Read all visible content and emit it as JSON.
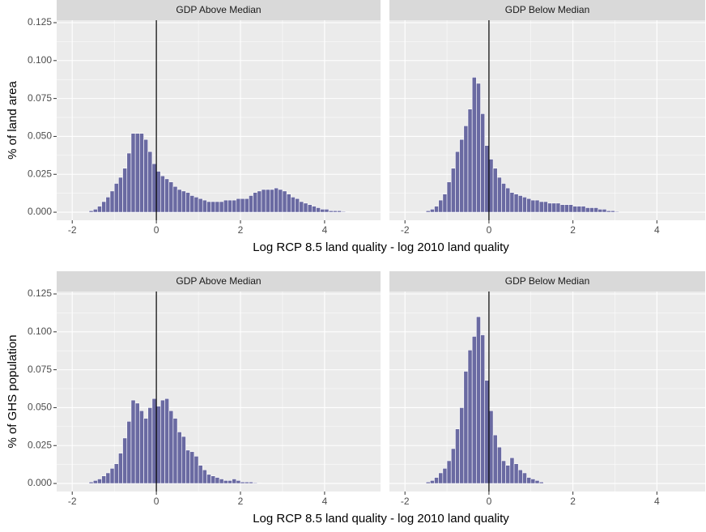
{
  "chart_data": [
    {
      "type": "histogram",
      "title": "GDP Above Median",
      "ylabel": "% of land area",
      "xlabel": "Log RCP 8.5 land quality - log 2010 land quality",
      "color": "#6a6aa2",
      "xlim": [
        -2.37,
        5.33
      ],
      "ylim": [
        -0.0053,
        0.1266
      ],
      "xticks": [
        -2,
        0,
        2,
        4
      ],
      "yticks": [
        {
          "value": 0,
          "label": "0.000"
        },
        {
          "value": 0.025,
          "label": "0.025"
        },
        {
          "value": 0.05,
          "label": "0.050"
        },
        {
          "value": 0.075,
          "label": "0.075"
        },
        {
          "value": 0.1,
          "label": "0.100"
        },
        {
          "value": 0.125,
          "label": "0.125"
        }
      ],
      "vline": 0,
      "bins": [
        -1.6,
        -1.5,
        -1.4,
        -1.3,
        -1.2,
        -1.1,
        -1.0,
        -0.9,
        -0.8,
        -0.7,
        -0.6,
        -0.5,
        -0.4,
        -0.3,
        -0.2,
        -0.1,
        0.0,
        0.1,
        0.2,
        0.3,
        0.4,
        0.5,
        0.6,
        0.7,
        0.8,
        0.9,
        1.0,
        1.1,
        1.2,
        1.3,
        1.4,
        1.5,
        1.6,
        1.7,
        1.8,
        1.9,
        2.0,
        2.1,
        2.2,
        2.3,
        2.4,
        2.5,
        2.6,
        2.7,
        2.8,
        2.9,
        3.0,
        3.1,
        3.2,
        3.3,
        3.4,
        3.5,
        3.6,
        3.7,
        3.8,
        3.9,
        4.0,
        4.1,
        4.2,
        4.3,
        4.4,
        4.5,
        4.6
      ],
      "counts": [
        0.001,
        0.002,
        0.004,
        0.007,
        0.01,
        0.014,
        0.019,
        0.023,
        0.029,
        0.039,
        0.052,
        0.052,
        0.052,
        0.048,
        0.04,
        0.032,
        0.027,
        0.024,
        0.022,
        0.02,
        0.017,
        0.015,
        0.014,
        0.013,
        0.011,
        0.01,
        0.009,
        0.008,
        0.007,
        0.007,
        0.007,
        0.007,
        0.008,
        0.008,
        0.008,
        0.009,
        0.009,
        0.009,
        0.011,
        0.013,
        0.014,
        0.015,
        0.015,
        0.015,
        0.016,
        0.015,
        0.014,
        0.012,
        0.01,
        0.009,
        0.007,
        0.006,
        0.005,
        0.004,
        0.003,
        0.002,
        0.002,
        0.001,
        0.001,
        0.001,
        0.0005,
        0.0003
      ]
    },
    {
      "type": "histogram",
      "title": "GDP Below Median",
      "color": "#6a6aa2",
      "xlim": [
        -2.37,
        5.15
      ],
      "ylim": [
        -0.0053,
        0.1266
      ],
      "xticks": [
        -2,
        0,
        2,
        4
      ],
      "yticks": [
        0,
        0.025,
        0.05,
        0.075,
        0.1,
        0.125
      ],
      "vline": 0,
      "bins": [
        -1.5,
        -1.4,
        -1.3,
        -1.2,
        -1.1,
        -1.0,
        -0.9,
        -0.8,
        -0.7,
        -0.6,
        -0.5,
        -0.4,
        -0.3,
        -0.2,
        -0.1,
        0.0,
        0.1,
        0.2,
        0.3,
        0.4,
        0.5,
        0.6,
        0.7,
        0.8,
        0.9,
        1.0,
        1.1,
        1.2,
        1.3,
        1.4,
        1.5,
        1.6,
        1.7,
        1.8,
        1.9,
        2.0,
        2.1,
        2.2,
        2.3,
        2.4,
        2.5,
        2.6,
        2.7,
        2.8,
        2.9,
        3.0,
        3.1
      ],
      "counts": [
        0.001,
        0.002,
        0.004,
        0.008,
        0.012,
        0.02,
        0.029,
        0.04,
        0.048,
        0.057,
        0.068,
        0.089,
        0.085,
        0.065,
        0.044,
        0.035,
        0.029,
        0.023,
        0.019,
        0.016,
        0.013,
        0.012,
        0.011,
        0.01,
        0.009,
        0.008,
        0.008,
        0.007,
        0.007,
        0.006,
        0.006,
        0.006,
        0.005,
        0.005,
        0.005,
        0.004,
        0.004,
        0.004,
        0.003,
        0.003,
        0.003,
        0.002,
        0.002,
        0.001,
        0.001,
        0.0005
      ]
    },
    {
      "type": "histogram",
      "title": "GDP Above Median",
      "ylabel": "% of GHS population",
      "xlabel": "Log RCP 8.5 land quality - log 2010 land quality",
      "color": "#6a6aa2",
      "xlim": [
        -2.37,
        5.33
      ],
      "ylim": [
        -0.0053,
        0.1266
      ],
      "xticks": [
        -2,
        0,
        2,
        4
      ],
      "yticks": [
        {
          "value": 0,
          "label": "0.000"
        },
        {
          "value": 0.025,
          "label": "0.025"
        },
        {
          "value": 0.05,
          "label": "0.050"
        },
        {
          "value": 0.075,
          "label": "0.075"
        },
        {
          "value": 0.1,
          "label": "0.100"
        },
        {
          "value": 0.125,
          "label": "0.125"
        }
      ],
      "vline": 0,
      "bins": [
        -1.6,
        -1.5,
        -1.4,
        -1.3,
        -1.2,
        -1.1,
        -1.0,
        -0.9,
        -0.8,
        -0.7,
        -0.6,
        -0.5,
        -0.4,
        -0.3,
        -0.2,
        -0.1,
        0.0,
        0.1,
        0.2,
        0.3,
        0.4,
        0.5,
        0.6,
        0.7,
        0.8,
        0.9,
        1.0,
        1.1,
        1.2,
        1.3,
        1.4,
        1.5,
        1.6,
        1.7,
        1.8,
        1.9,
        2.0,
        2.1,
        2.2,
        2.3,
        2.4,
        2.5
      ],
      "counts": [
        0.001,
        0.002,
        0.003,
        0.005,
        0.007,
        0.01,
        0.013,
        0.02,
        0.03,
        0.041,
        0.055,
        0.053,
        0.048,
        0.043,
        0.05,
        0.056,
        0.051,
        0.055,
        0.056,
        0.048,
        0.043,
        0.034,
        0.031,
        0.022,
        0.021,
        0.018,
        0.012,
        0.009,
        0.006,
        0.005,
        0.004,
        0.003,
        0.002,
        0.002,
        0.003,
        0.002,
        0.001,
        0.001,
        0.001,
        0.0005,
        0.0003
      ]
    },
    {
      "type": "histogram",
      "title": "GDP Below Median",
      "color": "#6a6aa2",
      "xlim": [
        -2.37,
        5.15
      ],
      "ylim": [
        -0.0053,
        0.1266
      ],
      "xticks": [
        -2,
        0,
        2,
        4
      ],
      "yticks": [
        0,
        0.025,
        0.05,
        0.075,
        0.1,
        0.125
      ],
      "vline": 0,
      "bins": [
        -1.5,
        -1.4,
        -1.3,
        -1.2,
        -1.1,
        -1.0,
        -0.9,
        -0.8,
        -0.7,
        -0.6,
        -0.5,
        -0.4,
        -0.3,
        -0.2,
        -0.1,
        0.0,
        0.1,
        0.2,
        0.3,
        0.4,
        0.5,
        0.6,
        0.7,
        0.8,
        0.9,
        1.0,
        1.1,
        1.2,
        1.3
      ],
      "counts": [
        0.001,
        0.002,
        0.004,
        0.007,
        0.01,
        0.015,
        0.023,
        0.036,
        0.05,
        0.074,
        0.088,
        0.097,
        0.11,
        0.098,
        0.068,
        0.048,
        0.032,
        0.024,
        0.015,
        0.012,
        0.017,
        0.013,
        0.009,
        0.007,
        0.004,
        0.003,
        0.002,
        0.001
      ]
    }
  ]
}
